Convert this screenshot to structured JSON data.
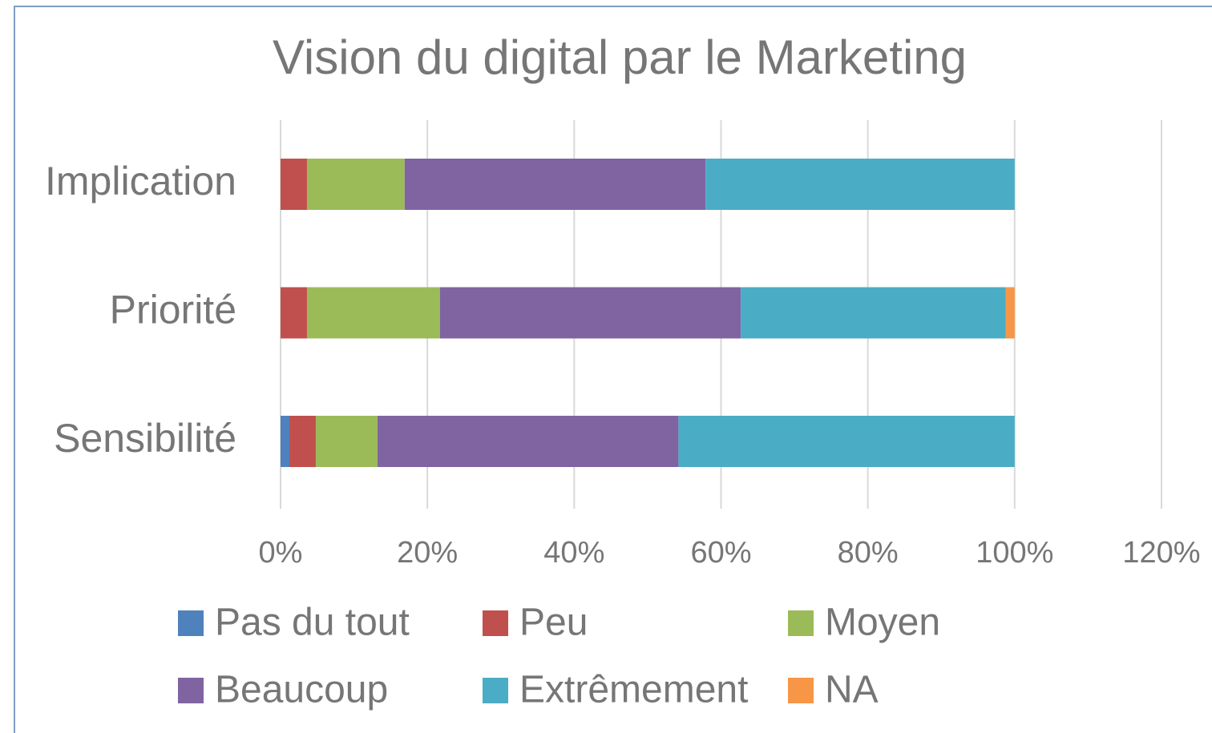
{
  "chart_data": {
    "type": "stacked_bar_horizontal",
    "title": "Vision du digital par le Marketing",
    "categories": [
      "Implication",
      "Priorité",
      "Sensibilité"
    ],
    "series": [
      {
        "name": "Pas du tout",
        "color": "#4f81bd",
        "values": [
          0,
          0,
          1.2
        ]
      },
      {
        "name": "Peu",
        "color": "#c0504d",
        "values": [
          3.6,
          3.6,
          3.6
        ]
      },
      {
        "name": "Moyen",
        "color": "#9bbb59",
        "values": [
          13.3,
          18.1,
          8.4
        ]
      },
      {
        "name": "Beaucoup",
        "color": "#8064a2",
        "values": [
          41,
          41,
          41
        ]
      },
      {
        "name": "Extrêmement",
        "color": "#4bacc6",
        "values": [
          42.1,
          36.1,
          45.8
        ]
      },
      {
        "name": "NA",
        "color": "#f79646",
        "values": [
          0,
          1.2,
          0
        ]
      }
    ],
    "xlim": [
      0,
      120
    ],
    "xticks": [
      {
        "value": 0,
        "label": "0%"
      },
      {
        "value": 20,
        "label": "20%"
      },
      {
        "value": 40,
        "label": "40%"
      },
      {
        "value": 60,
        "label": "60%"
      },
      {
        "value": 80,
        "label": "80%"
      },
      {
        "value": 100,
        "label": "100%"
      },
      {
        "value": 120,
        "label": "120%"
      }
    ],
    "grid": true,
    "legend": "bottom"
  }
}
